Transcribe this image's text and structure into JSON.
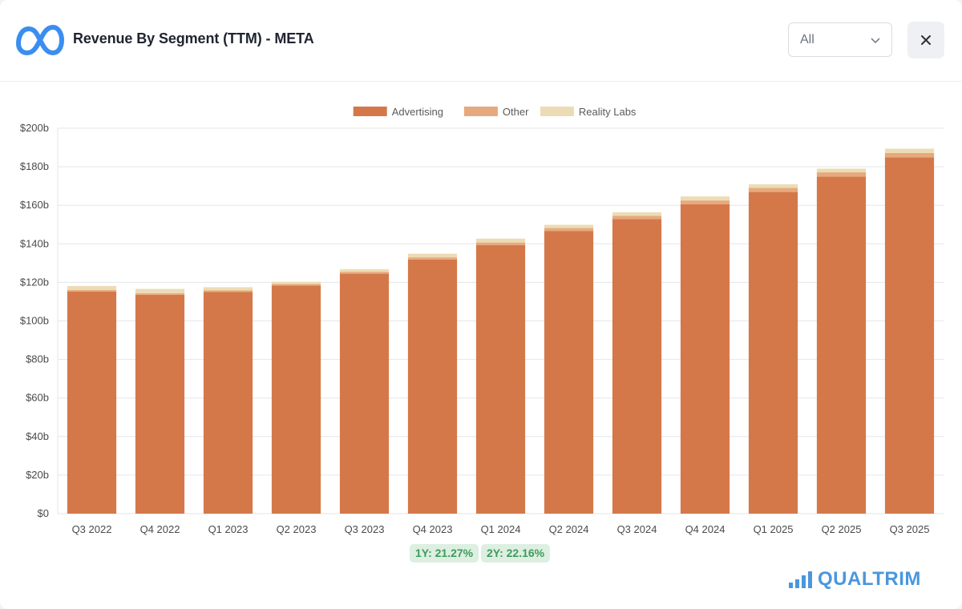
{
  "header": {
    "title": "Revenue By Segment (TTM) - META",
    "logo_icon": "meta-infinity-logo",
    "filter_value": "All",
    "close_icon": "close-icon"
  },
  "colors": {
    "advertising": "#d4784a",
    "other": "#e6a97d",
    "reality_labs": "#ecdcb4",
    "grid": "#e4e6ea",
    "axis_text": "#4a4a4a",
    "logo": "#3a8ef0",
    "growth_pill_bg": "#dcefe1",
    "growth_pill_text": "#3f9b5c",
    "brand": "#4a97dd"
  },
  "growth": {
    "one_year": "1Y: 21.27%",
    "two_year": "2Y: 22.16%"
  },
  "brand": {
    "name": "QUALTRIM"
  },
  "chart_data": {
    "type": "bar",
    "stacked": true,
    "categories": [
      "Q3 2022",
      "Q4 2022",
      "Q1 2023",
      "Q2 2023",
      "Q3 2023",
      "Q4 2023",
      "Q1 2024",
      "Q2 2024",
      "Q3 2024",
      "Q4 2024",
      "Q1 2025",
      "Q2 2025",
      "Q3 2025"
    ],
    "series": [
      {
        "name": "Advertising",
        "values": [
          115.2,
          113.6,
          115.1,
          118.4,
          124.5,
          131.9,
          139.4,
          146.7,
          152.9,
          160.6,
          166.9,
          174.9,
          184.9
        ]
      },
      {
        "name": "Other",
        "values": [
          0.8,
          0.8,
          0.7,
          0.7,
          1.0,
          1.1,
          1.3,
          1.5,
          1.7,
          1.9,
          2.1,
          2.2,
          2.3
        ]
      },
      {
        "name": "Reality Labs",
        "values": [
          2.1,
          2.2,
          1.7,
          1.2,
          1.3,
          1.9,
          2.0,
          1.7,
          1.8,
          2.1,
          1.9,
          1.9,
          2.2
        ]
      }
    ],
    "ylim": [
      0,
      200
    ],
    "yticks": [
      0,
      20,
      40,
      60,
      80,
      100,
      120,
      140,
      160,
      180,
      200
    ],
    "ytick_labels": [
      "$0",
      "$20b",
      "$40b",
      "$60b",
      "$80b",
      "$100b",
      "$120b",
      "$140b",
      "$160b",
      "$180b",
      "$200b"
    ],
    "legend": [
      "Advertising",
      "Other",
      "Reality Labs"
    ],
    "legend_position": "top-center",
    "grid": true,
    "xlabel": "",
    "ylabel": ""
  }
}
